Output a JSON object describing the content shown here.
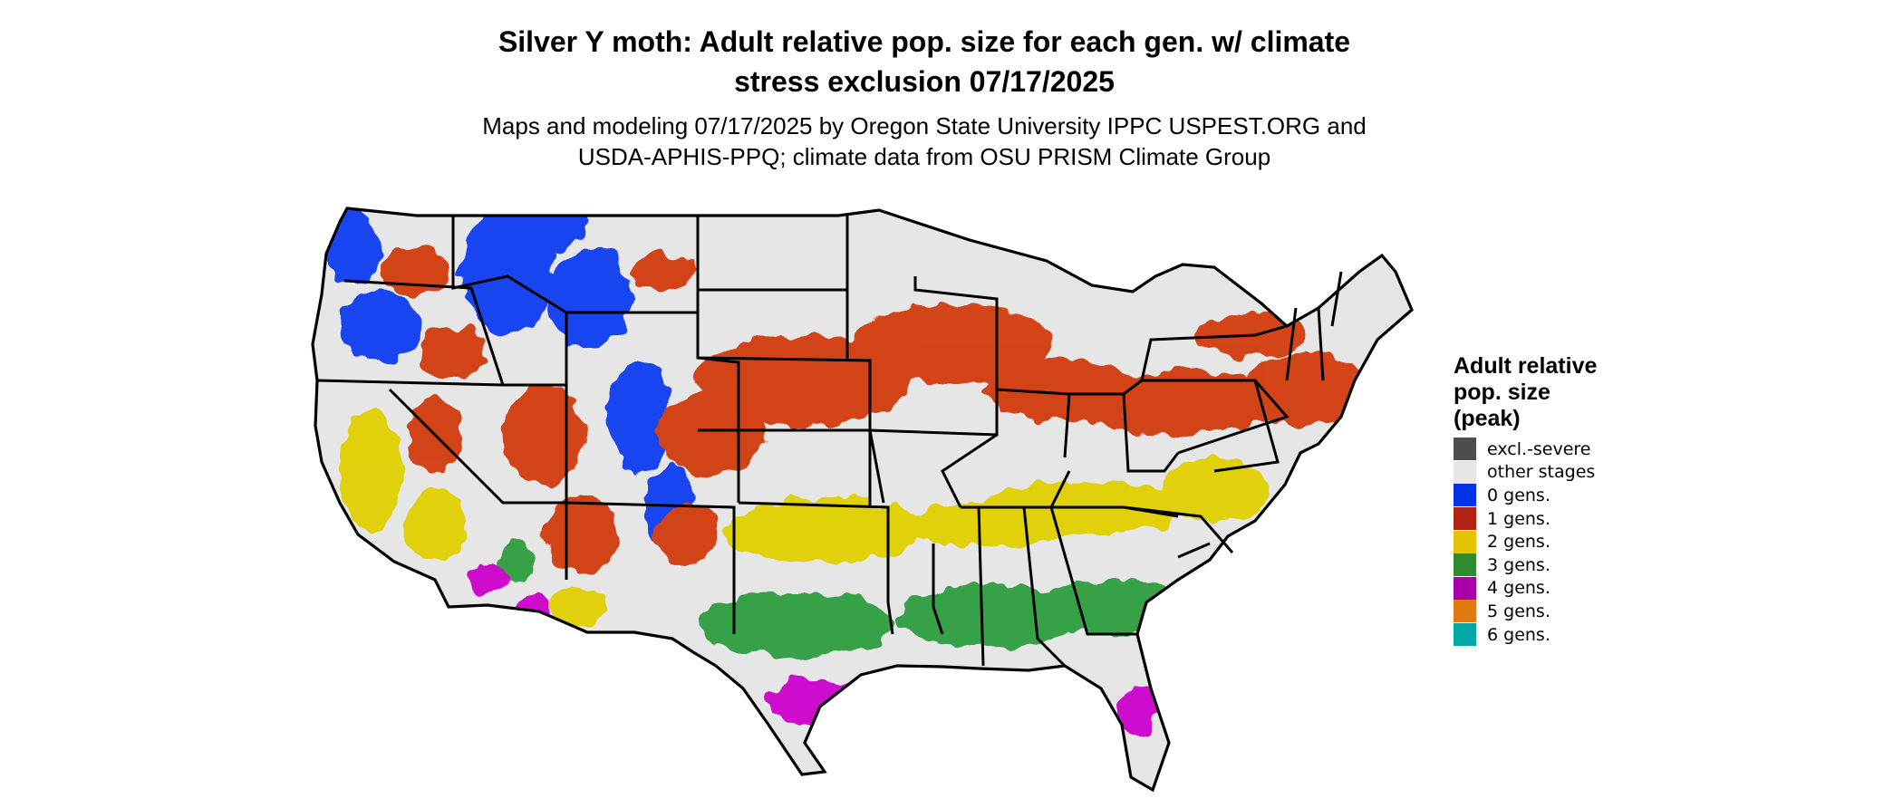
{
  "title": {
    "line1": "Silver Y moth: Adult relative pop. size for each gen. w/ climate",
    "line2": "stress exclusion 07/17/2025"
  },
  "subtitle": {
    "line1": "Maps and modeling 07/17/2025 by Oregon State University IPPC USPEST.ORG and",
    "line2": "USDA-APHIS-PPQ; climate data from OSU PRISM Climate Group"
  },
  "legend": {
    "title_line1": "Adult relative",
    "title_line2": "pop. size",
    "title_line3": "(peak)",
    "items": [
      {
        "label": "excl.-severe",
        "color": "#4d4d4d"
      },
      {
        "label": "other stages",
        "color": "#e6e6e6"
      },
      {
        "label": "0 gens.",
        "color": "#0033e6"
      },
      {
        "label": "1 gens.",
        "color": "#b22212"
      },
      {
        "label": "2 gens.",
        "color": "#e0c400"
      },
      {
        "label": "3 gens.",
        "color": "#2e8b2e"
      },
      {
        "label": "4 gens.",
        "color": "#aa00aa"
      },
      {
        "label": "5 gens.",
        "color": "#e07a10"
      },
      {
        "label": "6 gens.",
        "color": "#00a8a8"
      }
    ]
  },
  "map": {
    "region": "Contiguous United States",
    "background_color": "#e6e6e6",
    "boundary_color": "#000000",
    "gen_colors": {
      "0": "#0a3df0",
      "1": "#d23a0c",
      "2": "#e0d000",
      "3": "#2f9e3f",
      "4": "#cc00cc",
      "5": "#e07a10"
    }
  }
}
